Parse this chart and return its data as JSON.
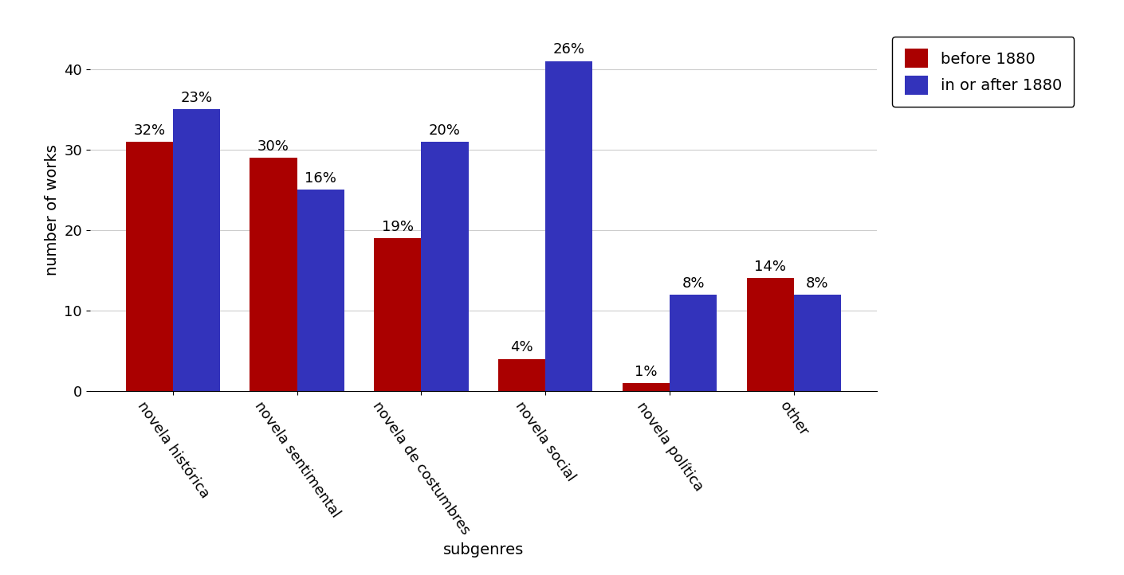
{
  "categories": [
    "novela histórica",
    "novela sentimental",
    "novela de costumbres",
    "novela social",
    "novela política",
    "other"
  ],
  "before_1880": [
    31,
    29,
    19,
    4,
    1,
    14
  ],
  "after_1880": [
    35,
    25,
    31,
    41,
    12,
    12
  ],
  "before_pct": [
    "32%",
    "30%",
    "19%",
    "4%",
    "1%",
    "14%"
  ],
  "after_pct": [
    "23%",
    "16%",
    "20%",
    "26%",
    "8%",
    "8%"
  ],
  "before_color": "#AA0000",
  "after_color": "#3333BB",
  "xlabel": "subgenres",
  "ylabel": "number of works",
  "legend_before": "before 1880",
  "legend_after": "in or after 1880",
  "ylim": [
    0,
    45
  ],
  "yticks": [
    0,
    10,
    20,
    30,
    40
  ],
  "bar_width": 0.38,
  "label_fontsize": 14,
  "tick_fontsize": 13,
  "legend_fontsize": 14,
  "annotation_fontsize": 13,
  "background_color": "#ffffff"
}
